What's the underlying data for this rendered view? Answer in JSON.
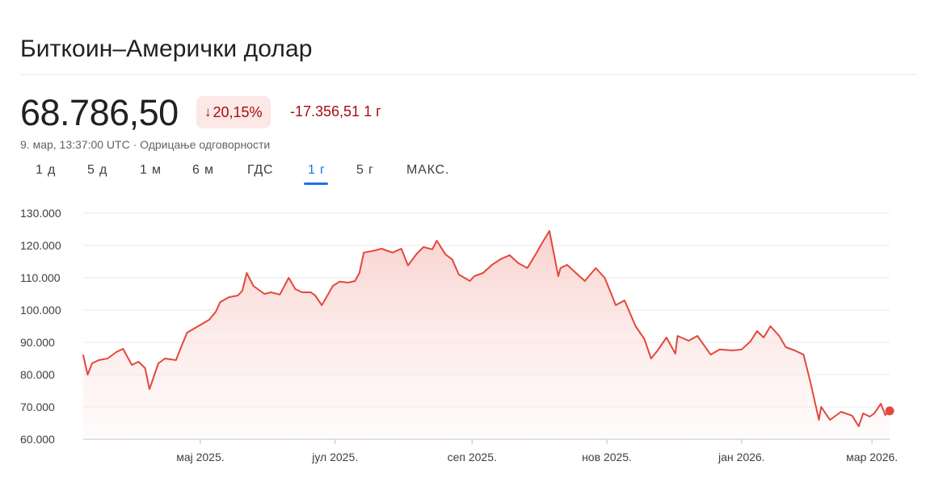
{
  "header": {
    "title": "Биткоин–Амерички долар",
    "price": "68.786,50",
    "change_percent": "20,15%",
    "change_arrow_icon": "arrow-down-icon",
    "change_period": "-17.356,51 1 г",
    "meta": "9. мар, 13:37:00 UTC · Одрицање одговорности"
  },
  "tabs": [
    {
      "label": "1 д",
      "active": false
    },
    {
      "label": "5 д",
      "active": false
    },
    {
      "label": "1 м",
      "active": false
    },
    {
      "label": "6 м",
      "active": false
    },
    {
      "label": "ГДС",
      "active": false
    },
    {
      "label": "1 г",
      "active": true
    },
    {
      "label": "5 г",
      "active": false
    },
    {
      "label": "МАКС.",
      "active": false
    }
  ],
  "colors": {
    "line": "#e3483c",
    "fill": "#fadbd8",
    "grid": "#e8eaed",
    "negative": "#a50e0e",
    "active_tab": "#1a73e8"
  },
  "chart_data": {
    "type": "area",
    "ylim": [
      60000,
      130000
    ],
    "yticks": [
      60000,
      70000,
      80000,
      90000,
      100000,
      110000,
      120000,
      130000
    ],
    "ytick_labels": [
      "60.000",
      "70.000",
      "80.000",
      "90.000",
      "100.000",
      "110.000",
      "120.000",
      "130.000"
    ],
    "xlim": [
      "2025-03-09",
      "2026-03-09"
    ],
    "xticks": [
      "2025-05-01",
      "2025-07-01",
      "2025-09-01",
      "2025-11-01",
      "2026-01-01",
      "2026-03-01"
    ],
    "xtick_labels": [
      "мај 2025.",
      "јул 2025.",
      "сеп 2025.",
      "нов 2025.",
      "јан 2026.",
      "мар 2026."
    ],
    "grid": true,
    "series": [
      {
        "x": [
          "2025-03-09",
          "2025-03-11",
          "2025-03-13",
          "2025-03-16",
          "2025-03-20",
          "2025-03-24",
          "2025-03-27",
          "2025-03-31",
          "2025-04-03",
          "2025-04-06",
          "2025-04-08",
          "2025-04-12",
          "2025-04-15",
          "2025-04-20",
          "2025-04-22",
          "2025-04-25",
          "2025-04-30",
          "2025-05-05",
          "2025-05-08",
          "2025-05-10",
          "2025-05-14",
          "2025-05-18",
          "2025-05-20",
          "2025-05-22",
          "2025-05-25",
          "2025-05-30",
          "2025-06-02",
          "2025-06-06",
          "2025-06-10",
          "2025-06-13",
          "2025-06-16",
          "2025-06-20",
          "2025-06-22",
          "2025-06-25",
          "2025-06-30",
          "2025-07-03",
          "2025-07-07",
          "2025-07-10",
          "2025-07-12",
          "2025-07-14",
          "2025-07-18",
          "2025-07-22",
          "2025-07-27",
          "2025-07-31",
          "2025-08-03",
          "2025-08-07",
          "2025-08-10",
          "2025-08-14",
          "2025-08-16",
          "2025-08-20",
          "2025-08-23",
          "2025-08-26",
          "2025-08-31",
          "2025-09-02",
          "2025-09-06",
          "2025-09-10",
          "2025-09-14",
          "2025-09-18",
          "2025-09-22",
          "2025-09-26",
          "2025-09-30",
          "2025-10-02",
          "2025-10-06",
          "2025-10-10",
          "2025-10-11",
          "2025-10-14",
          "2025-10-18",
          "2025-10-22",
          "2025-10-27",
          "2025-10-31",
          "2025-11-03",
          "2025-11-05",
          "2025-11-09",
          "2025-11-14",
          "2025-11-18",
          "2025-11-21",
          "2025-11-24",
          "2025-11-28",
          "2025-12-02",
          "2025-12-03",
          "2025-12-08",
          "2025-12-12",
          "2025-12-18",
          "2025-12-22",
          "2025-12-28",
          "2026-01-01",
          "2026-01-05",
          "2026-01-08",
          "2026-01-11",
          "2026-01-14",
          "2026-01-18",
          "2026-01-21",
          "2026-01-25",
          "2026-01-29",
          "2026-02-01",
          "2026-02-05",
          "2026-02-06",
          "2026-02-10",
          "2026-02-15",
          "2026-02-20",
          "2026-02-23",
          "2026-02-25",
          "2026-02-28",
          "2026-03-02",
          "2026-03-05",
          "2026-03-07",
          "2026-03-09"
        ],
        "y": [
          86000,
          80000,
          83500,
          84500,
          85000,
          87000,
          88000,
          83000,
          84000,
          82000,
          75500,
          83500,
          85000,
          84500,
          88000,
          93000,
          95000,
          97000,
          99500,
          102500,
          104000,
          104500,
          106000,
          111500,
          107500,
          105000,
          105500,
          104800,
          110000,
          106500,
          105500,
          105500,
          104500,
          101500,
          107500,
          108800,
          108500,
          109000,
          111500,
          117800,
          118300,
          119000,
          117800,
          119000,
          113800,
          117500,
          119500,
          118800,
          121500,
          117200,
          115700,
          111000,
          109000,
          110500,
          111500,
          114000,
          115800,
          117000,
          114500,
          113000,
          117500,
          120000,
          124500,
          110500,
          113000,
          114000,
          111500,
          109000,
          113000,
          110000,
          105000,
          101500,
          103000,
          95000,
          91000,
          85000,
          87500,
          91500,
          86500,
          92000,
          90500,
          92000,
          86200,
          87800,
          87500,
          87800,
          90300,
          93500,
          91500,
          95000,
          92000,
          88500,
          87500,
          86200,
          78000,
          66000,
          70000,
          66000,
          68500,
          67300,
          64000,
          68000,
          67000,
          68000,
          71000,
          67500,
          68786.5
        ]
      }
    ]
  }
}
